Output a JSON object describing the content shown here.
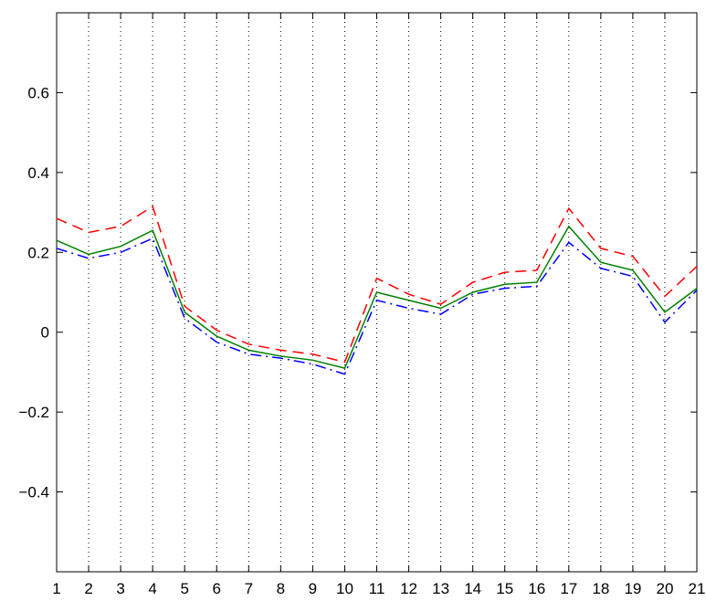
{
  "chart_data": {
    "type": "line",
    "x": [
      1,
      2,
      3,
      4,
      5,
      6,
      7,
      8,
      9,
      10,
      11,
      12,
      13,
      14,
      15,
      16,
      17,
      18,
      19,
      20,
      21
    ],
    "series": [
      {
        "color": "#ff0000",
        "style": "dashed",
        "values": [
          0.285,
          0.25,
          0.265,
          0.315,
          0.065,
          0.005,
          -0.03,
          -0.045,
          -0.055,
          -0.075,
          0.135,
          0.095,
          0.07,
          0.125,
          0.15,
          0.155,
          0.31,
          0.21,
          0.19,
          0.09,
          0.165
        ]
      },
      {
        "color": "#0000ff",
        "style": "dashdot",
        "values": [
          0.21,
          0.185,
          0.2,
          0.235,
          0.035,
          -0.025,
          -0.055,
          -0.065,
          -0.08,
          -0.105,
          0.08,
          0.06,
          0.045,
          0.095,
          0.11,
          0.115,
          0.225,
          0.16,
          0.14,
          0.025,
          0.105
        ]
      },
      {
        "color": "#008000",
        "style": "solid",
        "values": [
          0.23,
          0.195,
          0.215,
          0.255,
          0.05,
          -0.01,
          -0.045,
          -0.06,
          -0.07,
          -0.09,
          0.1,
          0.08,
          0.06,
          0.1,
          0.12,
          0.125,
          0.265,
          0.175,
          0.155,
          0.05,
          0.11
        ]
      }
    ],
    "xlim": [
      1,
      21
    ],
    "xticks": [
      1,
      2,
      3,
      4,
      5,
      6,
      7,
      8,
      9,
      10,
      11,
      12,
      13,
      14,
      15,
      16,
      17,
      18,
      19,
      20,
      21
    ],
    "ylim": [
      -0.6,
      0.8
    ],
    "yticks": [
      {
        "value": -0.4,
        "label": "−0.4"
      },
      {
        "value": -0.2,
        "label": "−0.2"
      },
      0,
      0.2,
      0.4,
      0.6
    ],
    "xgrid": true,
    "ygrid": false
  }
}
